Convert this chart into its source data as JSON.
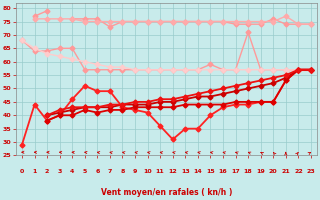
{
  "x": [
    0,
    1,
    2,
    3,
    4,
    5,
    6,
    7,
    8,
    9,
    10,
    11,
    12,
    13,
    14,
    15,
    16,
    17,
    18,
    19,
    20,
    21,
    22,
    23
  ],
  "series": [
    {
      "name": "pink_wavy_top",
      "color": "#ff9999",
      "lw": 1.0,
      "marker": "D",
      "ms": 2.5,
      "y": [
        null,
        77,
        79,
        null,
        76,
        76,
        76,
        73,
        75,
        75,
        75,
        75,
        75,
        75,
        75,
        75,
        75,
        74,
        74,
        74,
        76,
        74,
        74,
        74
      ]
    },
    {
      "name": "pink_flat_high",
      "color": "#ffaaaa",
      "lw": 1.0,
      "marker": "D",
      "ms": 2.5,
      "y": [
        null,
        76,
        76,
        76,
        76,
        75,
        75,
        75,
        75,
        75,
        75,
        75,
        75,
        75,
        75,
        75,
        75,
        75,
        75,
        75,
        75,
        77,
        74,
        74
      ]
    },
    {
      "name": "pink_descend",
      "color": "#ff9999",
      "lw": 1.0,
      "marker": "D",
      "ms": 2.5,
      "y": [
        68,
        64,
        64,
        65,
        65,
        57,
        57,
        57,
        57,
        57,
        57,
        57,
        57,
        57,
        57,
        59,
        57,
        57,
        71,
        57,
        57,
        57,
        57,
        57
      ]
    },
    {
      "name": "pink_slight_descend",
      "color": "#ffbbbb",
      "lw": 1.0,
      "marker": "D",
      "ms": 2.5,
      "y": [
        null,
        null,
        null,
        null,
        null,
        null,
        null,
        null,
        null,
        null,
        null,
        null,
        null,
        null,
        null,
        null,
        null,
        null,
        null,
        null,
        null,
        57,
        57,
        57
      ]
    },
    {
      "name": "pink_gradual_drop",
      "color": "#ffcccc",
      "lw": 1.0,
      "marker": "D",
      "ms": 2.5,
      "y": [
        68,
        65,
        63,
        62,
        61,
        60,
        59,
        58,
        58,
        57,
        57,
        57,
        57,
        57,
        57,
        57,
        57,
        57,
        57,
        57,
        57,
        57,
        57,
        57
      ]
    },
    {
      "name": "red_wavy",
      "color": "#ff2222",
      "lw": 1.3,
      "marker": "D",
      "ms": 2.5,
      "y": [
        29,
        44,
        38,
        40,
        46,
        51,
        49,
        49,
        43,
        42,
        41,
        36,
        31,
        35,
        35,
        40,
        43,
        44,
        44,
        45,
        45,
        53,
        57,
        57
      ]
    },
    {
      "name": "red_flat_lower",
      "color": "#dd0000",
      "lw": 1.3,
      "marker": "D",
      "ms": 2.5,
      "y": [
        null,
        null,
        38,
        40,
        40,
        42,
        41,
        42,
        42,
        43,
        43,
        43,
        43,
        44,
        44,
        44,
        44,
        45,
        45,
        45,
        45,
        53,
        57,
        57
      ]
    },
    {
      "name": "red_rising1",
      "color": "#cc0000",
      "lw": 1.3,
      "marker": "D",
      "ms": 2.5,
      "y": [
        null,
        null,
        40,
        41,
        42,
        43,
        43,
        43,
        44,
        44,
        44,
        45,
        45,
        46,
        47,
        47,
        48,
        49,
        50,
        51,
        52,
        54,
        57,
        57
      ]
    },
    {
      "name": "red_rising2",
      "color": "#ee1111",
      "lw": 1.3,
      "marker": "D",
      "ms": 2.5,
      "y": [
        null,
        null,
        40,
        42,
        43,
        43,
        43,
        44,
        44,
        45,
        45,
        46,
        46,
        47,
        48,
        49,
        50,
        51,
        52,
        53,
        54,
        55,
        57,
        57
      ]
    }
  ],
  "xlabel": "Vent moyen/en rafales ( kn/h )",
  "ylim": [
    25,
    82
  ],
  "xlim": [
    -0.5,
    23.5
  ],
  "yticks": [
    25,
    30,
    35,
    40,
    45,
    50,
    55,
    60,
    65,
    70,
    75,
    80
  ],
  "xticks": [
    0,
    1,
    2,
    3,
    4,
    5,
    6,
    7,
    8,
    9,
    10,
    11,
    12,
    13,
    14,
    15,
    16,
    17,
    18,
    19,
    20,
    21,
    22,
    23
  ],
  "bg_color": "#c8ebeb",
  "grid_color": "#99cccc",
  "xlabel_color": "#cc0000",
  "tick_color": "#cc0000",
  "arrow_color": "#cc0000",
  "arrow_angles": [
    180,
    170,
    170,
    165,
    160,
    150,
    140,
    135,
    135,
    135,
    135,
    135,
    135,
    135,
    135,
    135,
    130,
    125,
    120,
    110,
    100,
    90,
    80,
    70
  ]
}
